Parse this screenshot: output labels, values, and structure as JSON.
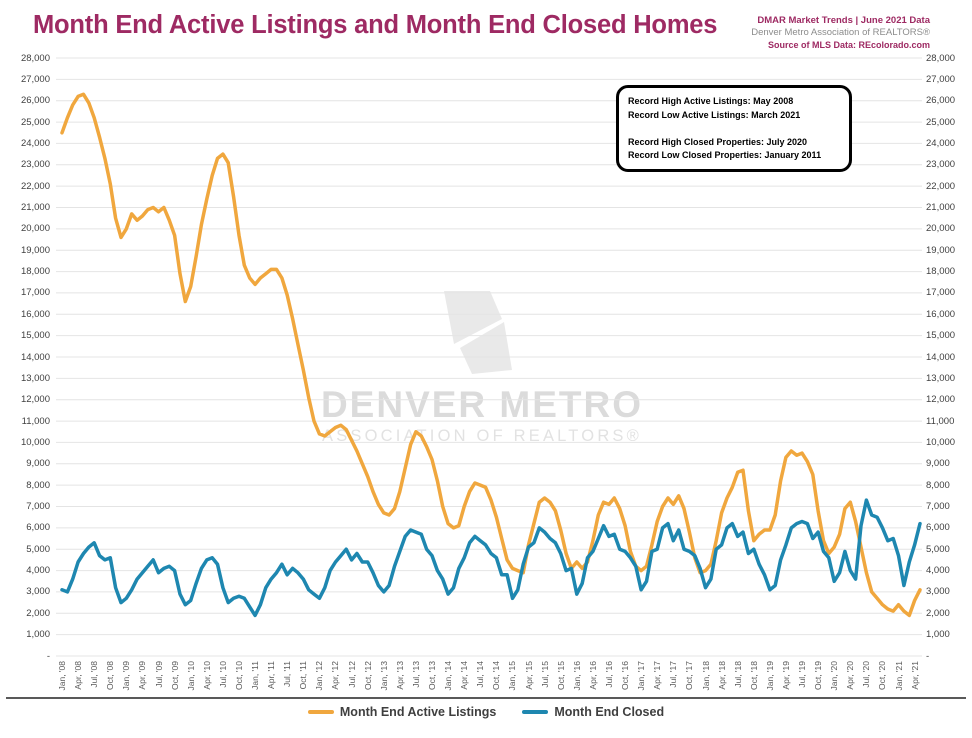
{
  "header": {
    "title": "Month End Active Listings and Month End Closed Homes",
    "brand_line1": "DMAR Market Trends | June 2021 Data",
    "brand_line2": "Denver Metro Association of REALTORS®",
    "brand_line3": "Source of MLS Data: REcolorado.com"
  },
  "annotation_box": {
    "lines": [
      "Record High Active Listings: May 2008",
      "Record Low Active Listings: March 2021",
      "",
      "Record High Closed Properties: July 2020",
      "Record Low Closed Properties: January 2011"
    ]
  },
  "watermark": {
    "logo": "dmar-diamond-logo",
    "line1": "DENVER METRO",
    "line2": "ASSOCIATION OF REALTORS®"
  },
  "colors": {
    "title": "#9E2A63",
    "active_listings_line": "#F0A73E",
    "closed_line": "#1E87B0",
    "grid": "#E4E4E4",
    "axis_text": "#404040",
    "x_axis_text": "#595959",
    "legend_text": "#3F3F3F",
    "watermark": "#DBDBDB"
  },
  "chart_data": {
    "type": "line",
    "title": "Month End Active Listings and Month End Closed Homes",
    "x_interval": "monthly",
    "x_start": "Jan 2008",
    "x_end": "May 2021",
    "points_count": 161,
    "x_tick_every_months": 3,
    "x_tick_labels": [
      "Jan, '08",
      "Apr, '08",
      "Jul, '08",
      "Oct, '08",
      "Jan, '09",
      "Apr, '09",
      "Jul, '09",
      "Oct, '09",
      "Jan, '10",
      "Apr, '10",
      "Jul, '10",
      "Oct, '10",
      "Jan, '11",
      "Apr, '11",
      "Jul, '11",
      "Oct, '11",
      "Jan, '12",
      "Apr, '12",
      "Jul, '12",
      "Oct, '12",
      "Jan, '13",
      "Apr, '13",
      "Jul, '13",
      "Oct, '13",
      "Jan, '14",
      "Apr, '14",
      "Jul, '14",
      "Oct, '14",
      "Jan, '15",
      "Apr, '15",
      "Jul, '15",
      "Oct, '15",
      "Jan, '16",
      "Apr, '16",
      "Jul, '16",
      "Oct, '16",
      "Jan, '17",
      "Apr, '17",
      "Jul, '17",
      "Oct, '17",
      "Jan, '18",
      "Apr, '18",
      "Jul, '18",
      "Oct, '18",
      "Jan, '19",
      "Apr, '19",
      "Jul, '19",
      "Oct, '19",
      "Jan, '20",
      "Apr, '20",
      "Jul, '20",
      "Oct, '20",
      "Jan, '21",
      "Apr, '21"
    ],
    "ylim": [
      0,
      28000
    ],
    "y_tick_step": 1000,
    "y_tick_labels": [
      "-",
      "1,000",
      "2,000",
      "3,000",
      "4,000",
      "5,000",
      "6,000",
      "7,000",
      "8,000",
      "9,000",
      "10,000",
      "11,000",
      "12,000",
      "13,000",
      "14,000",
      "15,000",
      "16,000",
      "17,000",
      "18,000",
      "19,000",
      "20,000",
      "21,000",
      "22,000",
      "23,000",
      "24,000",
      "25,000",
      "26,000",
      "27,000",
      "28,000"
    ],
    "y_axis_sides": [
      "left",
      "right"
    ],
    "grid": true,
    "legend_position": "bottom",
    "series": [
      {
        "name": "Month End Active Listings",
        "color": "#F0A73E",
        "values": [
          24500,
          25200,
          25800,
          26200,
          26300,
          25900,
          25200,
          24300,
          23300,
          22100,
          20500,
          19600,
          20000,
          20700,
          20400,
          20600,
          20900,
          21000,
          20800,
          21000,
          20400,
          19700,
          17900,
          16600,
          17300,
          18700,
          20200,
          21400,
          22500,
          23300,
          23500,
          23100,
          21500,
          19700,
          18300,
          17700,
          17400,
          17700,
          17900,
          18100,
          18100,
          17700,
          16900,
          15800,
          14600,
          13400,
          12100,
          11000,
          10400,
          10300,
          10500,
          10700,
          10800,
          10600,
          10100,
          9600,
          9000,
          8400,
          7700,
          7100,
          6700,
          6600,
          6900,
          7700,
          8800,
          9900,
          10500,
          10300,
          9800,
          9200,
          8200,
          7000,
          6200,
          6000,
          6100,
          7000,
          7700,
          8100,
          8000,
          7900,
          7300,
          6500,
          5500,
          4500,
          4100,
          4000,
          3900,
          5200,
          6200,
          7200,
          7400,
          7200,
          6800,
          5900,
          4800,
          4100,
          4400,
          4100,
          4400,
          5400,
          6600,
          7200,
          7100,
          7400,
          6900,
          6100,
          4900,
          4200,
          4000,
          4200,
          5200,
          6300,
          7000,
          7400,
          7100,
          7500,
          6900,
          5800,
          4600,
          3900,
          4000,
          4300,
          5400,
          6700,
          7400,
          7900,
          8600,
          8700,
          6800,
          5400,
          5700,
          5900,
          5900,
          6600,
          8200,
          9300,
          9600,
          9400,
          9500,
          9100,
          8500,
          6800,
          5400,
          4800,
          5100,
          5700,
          6900,
          7200,
          6300,
          5100,
          3900,
          3000,
          2700,
          2400,
          2200,
          2100,
          2400,
          2100,
          1900,
          2600,
          3100
        ]
      },
      {
        "name": "Month End Closed",
        "color": "#1E87B0",
        "values": [
          3100,
          3000,
          3600,
          4400,
          4800,
          5100,
          5300,
          4700,
          4500,
          4600,
          3200,
          2500,
          2700,
          3100,
          3600,
          3900,
          4200,
          4500,
          3900,
          4100,
          4200,
          4000,
          2900,
          2400,
          2600,
          3400,
          4100,
          4500,
          4600,
          4300,
          3200,
          2500,
          2700,
          2800,
          2700,
          2300,
          1900,
          2400,
          3200,
          3600,
          3900,
          4300,
          3800,
          4100,
          3900,
          3600,
          3100,
          2900,
          2700,
          3200,
          4000,
          4400,
          4700,
          5000,
          4500,
          4800,
          4400,
          4400,
          3900,
          3300,
          3000,
          3300,
          4200,
          4900,
          5600,
          5900,
          5800,
          5700,
          5000,
          4700,
          4000,
          3600,
          2900,
          3200,
          4100,
          4600,
          5300,
          5600,
          5400,
          5200,
          4800,
          4600,
          3800,
          3800,
          2700,
          3100,
          4300,
          5100,
          5300,
          6000,
          5800,
          5500,
          5300,
          4800,
          4000,
          4100,
          2900,
          3400,
          4600,
          4900,
          5500,
          6100,
          5600,
          5700,
          5000,
          4900,
          4600,
          4200,
          3100,
          3500,
          4900,
          5000,
          6000,
          6200,
          5400,
          5900,
          5000,
          4900,
          4700,
          4100,
          3200,
          3600,
          5000,
          5200,
          6000,
          6200,
          5600,
          5800,
          4800,
          5000,
          4300,
          3800,
          3100,
          3300,
          4500,
          5200,
          6000,
          6200,
          6300,
          6200,
          5500,
          5800,
          4900,
          4600,
          3500,
          3900,
          4900,
          4000,
          3600,
          6100,
          7300,
          6600,
          6500,
          6000,
          5400,
          5500,
          4700,
          3300,
          4400,
          5200,
          6200
        ]
      }
    ]
  }
}
